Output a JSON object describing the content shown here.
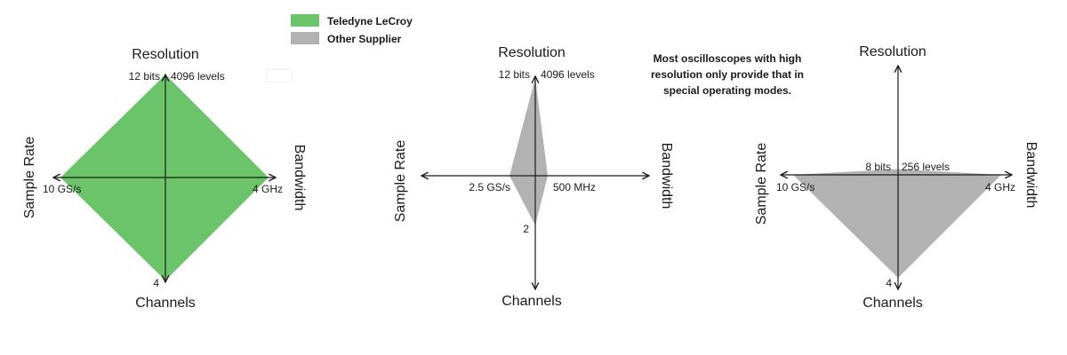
{
  "legend": {
    "items": [
      {
        "label": "Teledyne LeCroy",
        "color": "#6cc46a"
      },
      {
        "label": "Other Supplier",
        "color": "#b2b2b2"
      }
    ]
  },
  "note_lines": [
    "Most oscilloscopes with high",
    "resolution only provide that in",
    "special operating modes."
  ],
  "charts": [
    {
      "fill": "#6cc46a",
      "axes": {
        "top": "Resolution",
        "bottom": "Channels",
        "left": "Sample Rate",
        "right": "Bandwidth"
      },
      "values": {
        "top": {
          "label": "12 bits",
          "label2": "4096 levels",
          "level": 1.0
        },
        "right": {
          "label": "4 GHz",
          "level": 1.0
        },
        "bottom": {
          "label": "4",
          "level": 1.0
        },
        "left": {
          "label": "10 GS/s",
          "level": 1.0
        }
      }
    },
    {
      "fill": "#b2b2b2",
      "axes": {
        "top": "Resolution",
        "bottom": "Channels",
        "left": "Sample Rate",
        "right": "Bandwidth"
      },
      "values": {
        "top": {
          "label": "12 bits",
          "label2": "4096 levels",
          "level": 1.0
        },
        "right": {
          "label": "500 MHz",
          "level": 0.125
        },
        "bottom": {
          "label": "2",
          "level": 0.5
        },
        "left": {
          "label": "2.5 GS/s",
          "level": 0.25
        }
      }
    },
    {
      "fill": "#b2b2b2",
      "axes": {
        "top": "Resolution",
        "bottom": "Channels",
        "left": "Sample Rate",
        "right": "Bandwidth"
      },
      "values": {
        "top": {
          "label": "8 bits",
          "label2": "256 levels",
          "level": 0.0625
        },
        "right": {
          "label": "4 GHz",
          "level": 1.0
        },
        "bottom": {
          "label": "4",
          "level": 1.0
        },
        "left": {
          "label": "10 GS/s",
          "level": 1.0
        }
      }
    }
  ]
}
